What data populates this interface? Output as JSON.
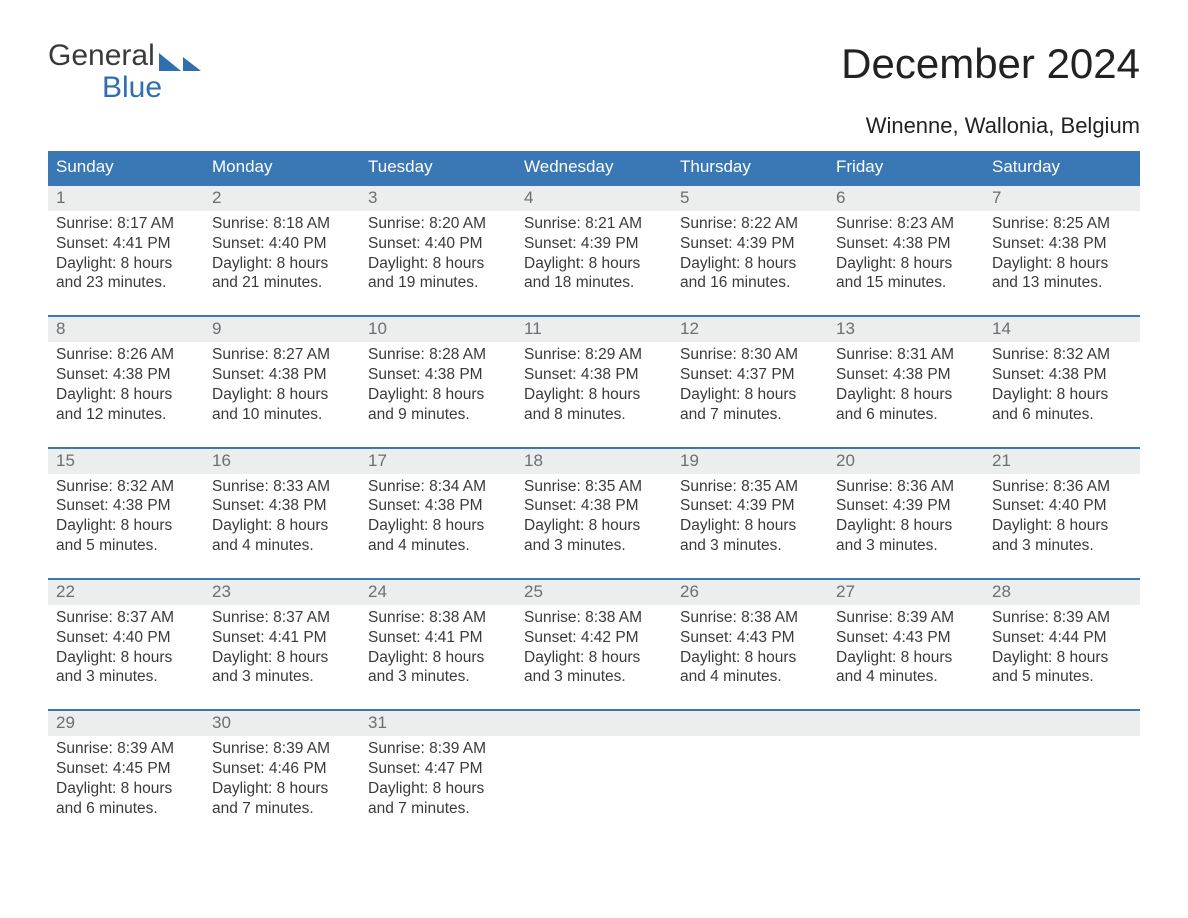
{
  "brand": {
    "name_top": "General",
    "name_bottom": "Blue",
    "accent": "#2f6fb0"
  },
  "header": {
    "title": "December 2024",
    "location": "Winenne, Wallonia, Belgium"
  },
  "colors": {
    "dow_bg": "#3a78b5",
    "dow_text": "#ffffff",
    "daynum_bg": "#eceded",
    "daynum_text": "#6b6f73",
    "week_border": "#3a78b5",
    "body_text": "#3a3a3a",
    "page_bg": "#ffffff"
  },
  "layout": {
    "columns": 7,
    "rows": 5,
    "cell_font_size_pt": 12,
    "title_font_size_pt": 32
  },
  "dows": [
    "Sunday",
    "Monday",
    "Tuesday",
    "Wednesday",
    "Thursday",
    "Friday",
    "Saturday"
  ],
  "weeks": [
    [
      {
        "n": "1",
        "sr": "Sunrise: 8:17 AM",
        "ss": "Sunset: 4:41 PM",
        "d1": "Daylight: 8 hours",
        "d2": "and 23 minutes."
      },
      {
        "n": "2",
        "sr": "Sunrise: 8:18 AM",
        "ss": "Sunset: 4:40 PM",
        "d1": "Daylight: 8 hours",
        "d2": "and 21 minutes."
      },
      {
        "n": "3",
        "sr": "Sunrise: 8:20 AM",
        "ss": "Sunset: 4:40 PM",
        "d1": "Daylight: 8 hours",
        "d2": "and 19 minutes."
      },
      {
        "n": "4",
        "sr": "Sunrise: 8:21 AM",
        "ss": "Sunset: 4:39 PM",
        "d1": "Daylight: 8 hours",
        "d2": "and 18 minutes."
      },
      {
        "n": "5",
        "sr": "Sunrise: 8:22 AM",
        "ss": "Sunset: 4:39 PM",
        "d1": "Daylight: 8 hours",
        "d2": "and 16 minutes."
      },
      {
        "n": "6",
        "sr": "Sunrise: 8:23 AM",
        "ss": "Sunset: 4:38 PM",
        "d1": "Daylight: 8 hours",
        "d2": "and 15 minutes."
      },
      {
        "n": "7",
        "sr": "Sunrise: 8:25 AM",
        "ss": "Sunset: 4:38 PM",
        "d1": "Daylight: 8 hours",
        "d2": "and 13 minutes."
      }
    ],
    [
      {
        "n": "8",
        "sr": "Sunrise: 8:26 AM",
        "ss": "Sunset: 4:38 PM",
        "d1": "Daylight: 8 hours",
        "d2": "and 12 minutes."
      },
      {
        "n": "9",
        "sr": "Sunrise: 8:27 AM",
        "ss": "Sunset: 4:38 PM",
        "d1": "Daylight: 8 hours",
        "d2": "and 10 minutes."
      },
      {
        "n": "10",
        "sr": "Sunrise: 8:28 AM",
        "ss": "Sunset: 4:38 PM",
        "d1": "Daylight: 8 hours",
        "d2": "and 9 minutes."
      },
      {
        "n": "11",
        "sr": "Sunrise: 8:29 AM",
        "ss": "Sunset: 4:38 PM",
        "d1": "Daylight: 8 hours",
        "d2": "and 8 minutes."
      },
      {
        "n": "12",
        "sr": "Sunrise: 8:30 AM",
        "ss": "Sunset: 4:37 PM",
        "d1": "Daylight: 8 hours",
        "d2": "and 7 minutes."
      },
      {
        "n": "13",
        "sr": "Sunrise: 8:31 AM",
        "ss": "Sunset: 4:38 PM",
        "d1": "Daylight: 8 hours",
        "d2": "and 6 minutes."
      },
      {
        "n": "14",
        "sr": "Sunrise: 8:32 AM",
        "ss": "Sunset: 4:38 PM",
        "d1": "Daylight: 8 hours",
        "d2": "and 6 minutes."
      }
    ],
    [
      {
        "n": "15",
        "sr": "Sunrise: 8:32 AM",
        "ss": "Sunset: 4:38 PM",
        "d1": "Daylight: 8 hours",
        "d2": "and 5 minutes."
      },
      {
        "n": "16",
        "sr": "Sunrise: 8:33 AM",
        "ss": "Sunset: 4:38 PM",
        "d1": "Daylight: 8 hours",
        "d2": "and 4 minutes."
      },
      {
        "n": "17",
        "sr": "Sunrise: 8:34 AM",
        "ss": "Sunset: 4:38 PM",
        "d1": "Daylight: 8 hours",
        "d2": "and 4 minutes."
      },
      {
        "n": "18",
        "sr": "Sunrise: 8:35 AM",
        "ss": "Sunset: 4:38 PM",
        "d1": "Daylight: 8 hours",
        "d2": "and 3 minutes."
      },
      {
        "n": "19",
        "sr": "Sunrise: 8:35 AM",
        "ss": "Sunset: 4:39 PM",
        "d1": "Daylight: 8 hours",
        "d2": "and 3 minutes."
      },
      {
        "n": "20",
        "sr": "Sunrise: 8:36 AM",
        "ss": "Sunset: 4:39 PM",
        "d1": "Daylight: 8 hours",
        "d2": "and 3 minutes."
      },
      {
        "n": "21",
        "sr": "Sunrise: 8:36 AM",
        "ss": "Sunset: 4:40 PM",
        "d1": "Daylight: 8 hours",
        "d2": "and 3 minutes."
      }
    ],
    [
      {
        "n": "22",
        "sr": "Sunrise: 8:37 AM",
        "ss": "Sunset: 4:40 PM",
        "d1": "Daylight: 8 hours",
        "d2": "and 3 minutes."
      },
      {
        "n": "23",
        "sr": "Sunrise: 8:37 AM",
        "ss": "Sunset: 4:41 PM",
        "d1": "Daylight: 8 hours",
        "d2": "and 3 minutes."
      },
      {
        "n": "24",
        "sr": "Sunrise: 8:38 AM",
        "ss": "Sunset: 4:41 PM",
        "d1": "Daylight: 8 hours",
        "d2": "and 3 minutes."
      },
      {
        "n": "25",
        "sr": "Sunrise: 8:38 AM",
        "ss": "Sunset: 4:42 PM",
        "d1": "Daylight: 8 hours",
        "d2": "and 3 minutes."
      },
      {
        "n": "26",
        "sr": "Sunrise: 8:38 AM",
        "ss": "Sunset: 4:43 PM",
        "d1": "Daylight: 8 hours",
        "d2": "and 4 minutes."
      },
      {
        "n": "27",
        "sr": "Sunrise: 8:39 AM",
        "ss": "Sunset: 4:43 PM",
        "d1": "Daylight: 8 hours",
        "d2": "and 4 minutes."
      },
      {
        "n": "28",
        "sr": "Sunrise: 8:39 AM",
        "ss": "Sunset: 4:44 PM",
        "d1": "Daylight: 8 hours",
        "d2": "and 5 minutes."
      }
    ],
    [
      {
        "n": "29",
        "sr": "Sunrise: 8:39 AM",
        "ss": "Sunset: 4:45 PM",
        "d1": "Daylight: 8 hours",
        "d2": "and 6 minutes."
      },
      {
        "n": "30",
        "sr": "Sunrise: 8:39 AM",
        "ss": "Sunset: 4:46 PM",
        "d1": "Daylight: 8 hours",
        "d2": "and 7 minutes."
      },
      {
        "n": "31",
        "sr": "Sunrise: 8:39 AM",
        "ss": "Sunset: 4:47 PM",
        "d1": "Daylight: 8 hours",
        "d2": "and 7 minutes."
      },
      null,
      null,
      null,
      null
    ]
  ]
}
